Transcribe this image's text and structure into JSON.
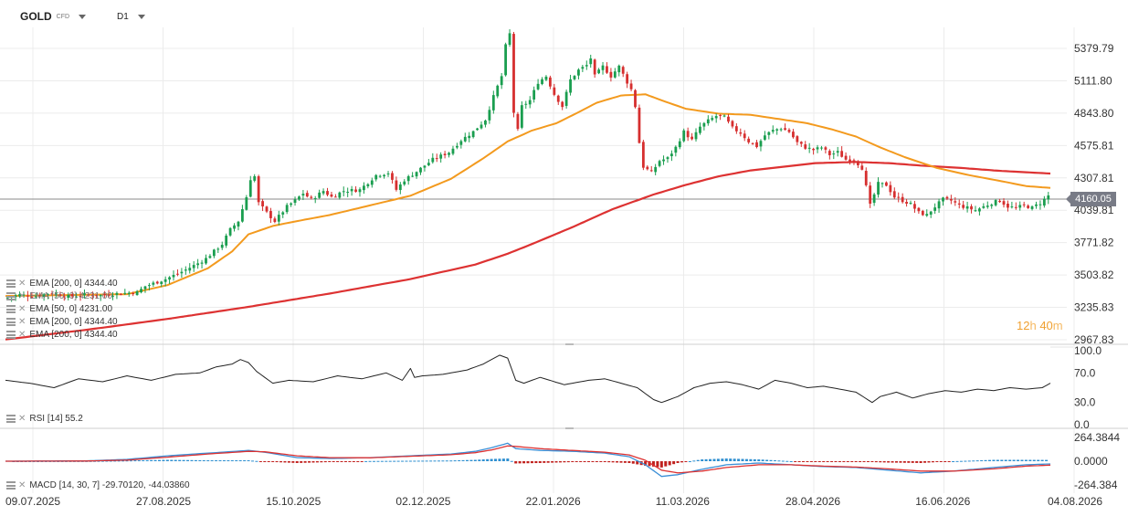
{
  "header": {
    "symbol": "GOLD",
    "symbol_sub": "CFD",
    "timeframe": "D1"
  },
  "legends": {
    "ema200_a": "EMA [200, 0] 4344.40",
    "ema50_overlap": "EMA [50, 0] 4231.00",
    "ema50": "EMA [50, 0] 4231.00",
    "ema200_b": "EMA [200, 0] 4344.40",
    "ema200_c": "EMA [200, 0] 4344.40",
    "rsi": "RSI [14] 55.2",
    "macd": "MACD [14, 30, 7] -29.70120, -44.03860"
  },
  "timer": {
    "hours": "12",
    "h_unit": "h",
    "minutes": "40",
    "m_unit": "m"
  },
  "chart_data": {
    "type": "candlestick",
    "instrument": "GOLD",
    "timeframe": "D1",
    "last_price": "4160.05",
    "colors": {
      "up": "#1a9e4f",
      "down": "#d62f2f",
      "ema50": "#f39a1e",
      "ema200": "#dd3232",
      "rsi": "#222222",
      "macd_line": "#3b8fd6",
      "signal_line": "#dd3232",
      "hist_pos": "#2e8fd0",
      "hist_neg": "#c0201d"
    },
    "price_axis": {
      "ticks": [
        "5379.79",
        "5111.80",
        "4843.80",
        "4575.81",
        "4307.81",
        "4039.81",
        "3771.82",
        "3503.82",
        "3235.83",
        "2967.83"
      ],
      "range": [
        2967.83,
        5379.79
      ]
    },
    "time_axis": {
      "labels": [
        "09.07.2025",
        "27.08.2025",
        "15.10.2025",
        "02.12.2025",
        "22.01.2026",
        "11.03.2026",
        "28.04.2026",
        "16.06.2026",
        "04.08.2026"
      ]
    },
    "price_path": [
      [
        0,
        3310
      ],
      [
        4,
        3340
      ],
      [
        8,
        3330
      ],
      [
        12,
        3355
      ],
      [
        16,
        3325
      ],
      [
        20,
        3340
      ],
      [
        24,
        3335
      ],
      [
        28,
        3350
      ],
      [
        33,
        3360
      ],
      [
        35,
        3410
      ],
      [
        40,
        3470
      ],
      [
        44,
        3530
      ],
      [
        48,
        3600
      ],
      [
        50,
        3640
      ],
      [
        52,
        3700
      ],
      [
        54,
        3760
      ],
      [
        56,
        3880
      ],
      [
        58,
        3950
      ],
      [
        59,
        4050
      ],
      [
        60,
        4150
      ],
      [
        61,
        4300
      ],
      [
        62,
        4320
      ],
      [
        63,
        4100
      ],
      [
        65,
        4020
      ],
      [
        67,
        3950
      ],
      [
        68,
        3990
      ],
      [
        70,
        4070
      ],
      [
        72,
        4120
      ],
      [
        74,
        4180
      ],
      [
        76,
        4130
      ],
      [
        79,
        4200
      ],
      [
        81,
        4150
      ],
      [
        84,
        4200
      ],
      [
        88,
        4210
      ],
      [
        92,
        4330
      ],
      [
        95,
        4350
      ],
      [
        97,
        4210
      ],
      [
        99,
        4290
      ],
      [
        102,
        4360
      ],
      [
        106,
        4460
      ],
      [
        110,
        4520
      ],
      [
        113,
        4620
      ],
      [
        116,
        4690
      ],
      [
        119,
        4790
      ],
      [
        121,
        4980
      ],
      [
        123,
        5150
      ],
      [
        124,
        5400
      ],
      [
        125,
        5500
      ],
      [
        126,
        4850
      ],
      [
        127,
        4700
      ],
      [
        128,
        4900
      ],
      [
        130,
        4950
      ],
      [
        132,
        5100
      ],
      [
        134,
        5150
      ],
      [
        136,
        5000
      ],
      [
        138,
        4900
      ],
      [
        140,
        5120
      ],
      [
        142,
        5200
      ],
      [
        144,
        5240
      ],
      [
        145,
        5300
      ],
      [
        146,
        5150
      ],
      [
        148,
        5230
      ],
      [
        150,
        5150
      ],
      [
        152,
        5230
      ],
      [
        154,
        5100
      ],
      [
        155,
        5040
      ],
      [
        156,
        4900
      ],
      [
        157,
        4600
      ],
      [
        158,
        4400
      ],
      [
        160,
        4350
      ],
      [
        162,
        4450
      ],
      [
        164,
        4470
      ],
      [
        166,
        4560
      ],
      [
        168,
        4690
      ],
      [
        170,
        4620
      ],
      [
        172,
        4730
      ],
      [
        174,
        4780
      ],
      [
        176,
        4820
      ],
      [
        178,
        4810
      ],
      [
        180,
        4720
      ],
      [
        182,
        4680
      ],
      [
        184,
        4610
      ],
      [
        186,
        4570
      ],
      [
        188,
        4660
      ],
      [
        190,
        4700
      ],
      [
        192,
        4720
      ],
      [
        194,
        4690
      ],
      [
        196,
        4600
      ],
      [
        198,
        4560
      ],
      [
        200,
        4540
      ],
      [
        202,
        4560
      ],
      [
        204,
        4500
      ],
      [
        206,
        4520
      ],
      [
        208,
        4460
      ],
      [
        210,
        4460
      ],
      [
        212,
        4390
      ],
      [
        214,
        4080
      ],
      [
        216,
        4260
      ],
      [
        218,
        4250
      ],
      [
        220,
        4150
      ],
      [
        222,
        4120
      ],
      [
        224,
        4090
      ],
      [
        226,
        4020
      ],
      [
        228,
        4000
      ],
      [
        230,
        4070
      ],
      [
        232,
        4130
      ],
      [
        234,
        4120
      ],
      [
        236,
        4080
      ],
      [
        238,
        4060
      ],
      [
        240,
        4040
      ],
      [
        242,
        4070
      ],
      [
        244,
        4100
      ],
      [
        246,
        4120
      ],
      [
        248,
        4070
      ],
      [
        250,
        4060
      ],
      [
        252,
        4080
      ],
      [
        254,
        4060
      ],
      [
        256,
        4100
      ],
      [
        258,
        4160
      ]
    ],
    "ema50_path": [
      [
        0,
        3330
      ],
      [
        10,
        3335
      ],
      [
        20,
        3340
      ],
      [
        30,
        3345
      ],
      [
        40,
        3420
      ],
      [
        50,
        3560
      ],
      [
        56,
        3700
      ],
      [
        60,
        3840
      ],
      [
        66,
        3910
      ],
      [
        72,
        3950
      ],
      [
        80,
        4000
      ],
      [
        90,
        4080
      ],
      [
        100,
        4160
      ],
      [
        110,
        4300
      ],
      [
        118,
        4470
      ],
      [
        124,
        4610
      ],
      [
        130,
        4700
      ],
      [
        136,
        4760
      ],
      [
        142,
        4860
      ],
      [
        146,
        4930
      ],
      [
        152,
        4990
      ],
      [
        158,
        5000
      ],
      [
        162,
        4950
      ],
      [
        168,
        4880
      ],
      [
        176,
        4840
      ],
      [
        184,
        4830
      ],
      [
        192,
        4790
      ],
      [
        198,
        4760
      ],
      [
        204,
        4710
      ],
      [
        210,
        4650
      ],
      [
        216,
        4560
      ],
      [
        222,
        4480
      ],
      [
        230,
        4390
      ],
      [
        238,
        4330
      ],
      [
        246,
        4280
      ],
      [
        252,
        4240
      ],
      [
        258,
        4225
      ]
    ],
    "ema200_path": [
      [
        0,
        2970
      ],
      [
        20,
        3050
      ],
      [
        40,
        3140
      ],
      [
        60,
        3240
      ],
      [
        80,
        3350
      ],
      [
        100,
        3470
      ],
      [
        116,
        3590
      ],
      [
        124,
        3680
      ],
      [
        130,
        3760
      ],
      [
        140,
        3900
      ],
      [
        150,
        4050
      ],
      [
        160,
        4170
      ],
      [
        168,
        4250
      ],
      [
        176,
        4320
      ],
      [
        184,
        4370
      ],
      [
        192,
        4400
      ],
      [
        200,
        4430
      ],
      [
        210,
        4440
      ],
      [
        218,
        4430
      ],
      [
        226,
        4410
      ],
      [
        236,
        4390
      ],
      [
        246,
        4365
      ],
      [
        258,
        4344
      ]
    ],
    "rsi": {
      "label": "RSI [14]",
      "value": 55.2,
      "ticks": [
        "100.0",
        "70.0",
        "30.0",
        "0.0"
      ],
      "path": [
        [
          0,
          60
        ],
        [
          6,
          56
        ],
        [
          12,
          50
        ],
        [
          18,
          62
        ],
        [
          24,
          58
        ],
        [
          30,
          66
        ],
        [
          36,
          60
        ],
        [
          42,
          68
        ],
        [
          48,
          70
        ],
        [
          52,
          78
        ],
        [
          56,
          82
        ],
        [
          58,
          88
        ],
        [
          60,
          84
        ],
        [
          62,
          72
        ],
        [
          66,
          56
        ],
        [
          70,
          60
        ],
        [
          76,
          58
        ],
        [
          82,
          66
        ],
        [
          88,
          62
        ],
        [
          94,
          70
        ],
        [
          98,
          60
        ],
        [
          100,
          76
        ],
        [
          101,
          64
        ],
        [
          103,
          66
        ],
        [
          108,
          68
        ],
        [
          114,
          74
        ],
        [
          118,
          82
        ],
        [
          120,
          88
        ],
        [
          122,
          94
        ],
        [
          124,
          90
        ],
        [
          126,
          60
        ],
        [
          128,
          56
        ],
        [
          132,
          64
        ],
        [
          138,
          54
        ],
        [
          144,
          60
        ],
        [
          148,
          62
        ],
        [
          152,
          56
        ],
        [
          156,
          50
        ],
        [
          160,
          34
        ],
        [
          162,
          30
        ],
        [
          166,
          38
        ],
        [
          170,
          50
        ],
        [
          174,
          56
        ],
        [
          178,
          58
        ],
        [
          182,
          54
        ],
        [
          186,
          48
        ],
        [
          190,
          60
        ],
        [
          194,
          56
        ],
        [
          198,
          50
        ],
        [
          202,
          52
        ],
        [
          206,
          48
        ],
        [
          210,
          44
        ],
        [
          214,
          30
        ],
        [
          216,
          38
        ],
        [
          220,
          44
        ],
        [
          224,
          36
        ],
        [
          228,
          42
        ],
        [
          232,
          46
        ],
        [
          236,
          44
        ],
        [
          240,
          48
        ],
        [
          244,
          46
        ],
        [
          248,
          50
        ],
        [
          252,
          48
        ],
        [
          256,
          50
        ],
        [
          258,
          56
        ]
      ]
    },
    "macd": {
      "label": "MACD [14, 30, 7]",
      "macd_value": -29.7012,
      "signal_value": -44.0386,
      "ticks": [
        "264.3844",
        "0.0000",
        "-264.384"
      ],
      "macd_path": [
        [
          0,
          0
        ],
        [
          20,
          4
        ],
        [
          30,
          20
        ],
        [
          40,
          60
        ],
        [
          50,
          90
        ],
        [
          60,
          120
        ],
        [
          64,
          100
        ],
        [
          72,
          40
        ],
        [
          80,
          30
        ],
        [
          90,
          40
        ],
        [
          100,
          60
        ],
        [
          110,
          80
        ],
        [
          116,
          110
        ],
        [
          120,
          150
        ],
        [
          124,
          200
        ],
        [
          126,
          140
        ],
        [
          132,
          120
        ],
        [
          140,
          110
        ],
        [
          148,
          90
        ],
        [
          154,
          50
        ],
        [
          158,
          -40
        ],
        [
          162,
          -170
        ],
        [
          166,
          -150
        ],
        [
          172,
          -90
        ],
        [
          178,
          -40
        ],
        [
          186,
          -20
        ],
        [
          194,
          -40
        ],
        [
          202,
          -60
        ],
        [
          210,
          -70
        ],
        [
          218,
          -100
        ],
        [
          226,
          -130
        ],
        [
          234,
          -110
        ],
        [
          244,
          -70
        ],
        [
          252,
          -40
        ],
        [
          258,
          -30
        ]
      ],
      "signal_path": [
        [
          0,
          0
        ],
        [
          20,
          2
        ],
        [
          30,
          12
        ],
        [
          40,
          45
        ],
        [
          50,
          80
        ],
        [
          60,
          110
        ],
        [
          64,
          105
        ],
        [
          72,
          60
        ],
        [
          80,
          40
        ],
        [
          90,
          38
        ],
        [
          100,
          55
        ],
        [
          110,
          72
        ],
        [
          116,
          95
        ],
        [
          120,
          125
        ],
        [
          124,
          170
        ],
        [
          126,
          165
        ],
        [
          132,
          140
        ],
        [
          140,
          120
        ],
        [
          148,
          100
        ],
        [
          154,
          70
        ],
        [
          158,
          10
        ],
        [
          162,
          -100
        ],
        [
          166,
          -130
        ],
        [
          172,
          -110
        ],
        [
          178,
          -70
        ],
        [
          186,
          -40
        ],
        [
          194,
          -40
        ],
        [
          202,
          -55
        ],
        [
          210,
          -65
        ],
        [
          218,
          -85
        ],
        [
          226,
          -110
        ],
        [
          234,
          -110
        ],
        [
          244,
          -85
        ],
        [
          252,
          -55
        ],
        [
          258,
          -44
        ]
      ]
    }
  }
}
